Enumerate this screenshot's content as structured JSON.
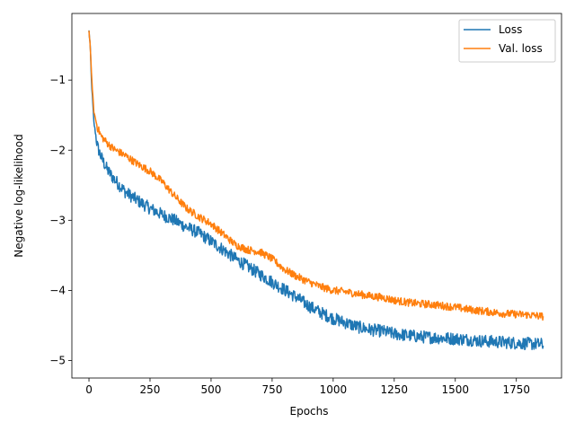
{
  "chart_data": {
    "type": "line",
    "xlabel": "Epochs",
    "ylabel": "Negative log-likelihood",
    "xlim": [
      -70,
      1935
    ],
    "ylim": [
      -5.25,
      -0.05
    ],
    "xticks": [
      0,
      250,
      500,
      750,
      1000,
      1250,
      1500,
      1750
    ],
    "yticks": [
      -5,
      -4,
      -3,
      -2,
      -1
    ],
    "x_tick_labels": [
      "0",
      "250",
      "500",
      "750",
      "1000",
      "1250",
      "1500",
      "1750"
    ],
    "y_tick_labels": [
      "−5",
      "−4",
      "−3",
      "−2",
      "−1"
    ],
    "grid": false,
    "legend_position": "upper right",
    "series": [
      {
        "name": "Loss",
        "color": "#1f77b4",
        "noise": 0.09,
        "points": [
          [
            0,
            -0.3
          ],
          [
            5,
            -0.5
          ],
          [
            10,
            -1.0
          ],
          [
            20,
            -1.6
          ],
          [
            35,
            -1.95
          ],
          [
            50,
            -2.1
          ],
          [
            75,
            -2.28
          ],
          [
            100,
            -2.4
          ],
          [
            150,
            -2.6
          ],
          [
            200,
            -2.72
          ],
          [
            250,
            -2.83
          ],
          [
            300,
            -2.92
          ],
          [
            350,
            -3.0
          ],
          [
            400,
            -3.1
          ],
          [
            450,
            -3.18
          ],
          [
            500,
            -3.3
          ],
          [
            550,
            -3.42
          ],
          [
            600,
            -3.55
          ],
          [
            650,
            -3.66
          ],
          [
            700,
            -3.77
          ],
          [
            750,
            -3.88
          ],
          [
            800,
            -3.99
          ],
          [
            850,
            -4.1
          ],
          [
            900,
            -4.22
          ],
          [
            950,
            -4.32
          ],
          [
            1000,
            -4.4
          ],
          [
            1050,
            -4.46
          ],
          [
            1100,
            -4.52
          ],
          [
            1150,
            -4.56
          ],
          [
            1200,
            -4.58
          ],
          [
            1250,
            -4.62
          ],
          [
            1300,
            -4.64
          ],
          [
            1350,
            -4.66
          ],
          [
            1400,
            -4.67
          ],
          [
            1450,
            -4.68
          ],
          [
            1500,
            -4.69
          ],
          [
            1550,
            -4.7
          ],
          [
            1600,
            -4.72
          ],
          [
            1650,
            -4.73
          ],
          [
            1700,
            -4.74
          ],
          [
            1750,
            -4.75
          ],
          [
            1800,
            -4.76
          ],
          [
            1860,
            -4.77
          ]
        ]
      },
      {
        "name": "Val. loss",
        "color": "#ff7f0e",
        "noise": 0.055,
        "points": [
          [
            0,
            -0.3
          ],
          [
            5,
            -0.5
          ],
          [
            10,
            -0.9
          ],
          [
            20,
            -1.45
          ],
          [
            35,
            -1.68
          ],
          [
            50,
            -1.8
          ],
          [
            75,
            -1.9
          ],
          [
            100,
            -1.98
          ],
          [
            150,
            -2.08
          ],
          [
            200,
            -2.2
          ],
          [
            250,
            -2.3
          ],
          [
            300,
            -2.45
          ],
          [
            350,
            -2.65
          ],
          [
            400,
            -2.83
          ],
          [
            450,
            -2.95
          ],
          [
            500,
            -3.05
          ],
          [
            550,
            -3.2
          ],
          [
            600,
            -3.35
          ],
          [
            650,
            -3.42
          ],
          [
            700,
            -3.45
          ],
          [
            750,
            -3.55
          ],
          [
            800,
            -3.7
          ],
          [
            850,
            -3.8
          ],
          [
            900,
            -3.88
          ],
          [
            950,
            -3.95
          ],
          [
            1000,
            -4.0
          ],
          [
            1050,
            -4.02
          ],
          [
            1100,
            -4.05
          ],
          [
            1150,
            -4.08
          ],
          [
            1200,
            -4.1
          ],
          [
            1250,
            -4.14
          ],
          [
            1300,
            -4.17
          ],
          [
            1350,
            -4.19
          ],
          [
            1400,
            -4.2
          ],
          [
            1450,
            -4.22
          ],
          [
            1500,
            -4.24
          ],
          [
            1550,
            -4.27
          ],
          [
            1600,
            -4.29
          ],
          [
            1650,
            -4.31
          ],
          [
            1700,
            -4.33
          ],
          [
            1750,
            -4.34
          ],
          [
            1800,
            -4.35
          ],
          [
            1860,
            -4.37
          ]
        ]
      }
    ]
  }
}
